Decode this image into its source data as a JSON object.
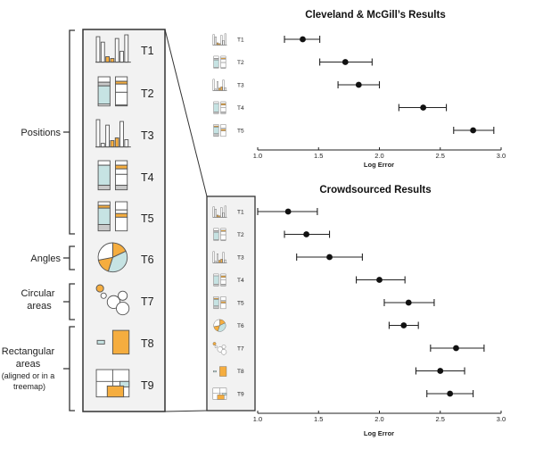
{
  "categories": [
    {
      "name": "Positions",
      "lines": [
        "Positions"
      ]
    },
    {
      "name": "Angles",
      "lines": [
        "Angles"
      ]
    },
    {
      "name": "Circular areas",
      "lines": [
        "Circular",
        "areas"
      ]
    },
    {
      "name": "Rectangular areas (aligned or in a treemap)",
      "lines": [
        "Rectangular",
        "areas",
        "(aligned or in a",
        "treemap)"
      ]
    }
  ],
  "tasks": [
    "T1",
    "T2",
    "T3",
    "T4",
    "T5",
    "T6",
    "T7",
    "T8",
    "T9"
  ],
  "colors": {
    "orange": "#f5ad3f",
    "lightblue": "#c6e3e3",
    "panel": "#f2f2f2",
    "gray": "#c9c9c9",
    "dark": "#333333"
  },
  "chart_data": [
    {
      "type": "scatter",
      "title": "Cleveland & McGill’s  Results",
      "xlabel": "Log Error",
      "ylabel": "",
      "xlim": [
        1.0,
        3.0
      ],
      "xticks": [
        "1.0",
        "1.5",
        "2.0",
        "2.5",
        "3.0"
      ],
      "categories": [
        "T1",
        "T2",
        "T3",
        "T4",
        "T5"
      ],
      "values": [
        1.37,
        1.72,
        1.83,
        2.36,
        2.77
      ],
      "ci_low": [
        1.22,
        1.51,
        1.66,
        2.16,
        2.61
      ],
      "ci_high": [
        1.51,
        1.94,
        2.0,
        2.55,
        2.94
      ],
      "grid": false
    },
    {
      "type": "scatter",
      "title": "Crowdsourced Results",
      "xlabel": "Log Error",
      "ylabel": "",
      "xlim": [
        1.0,
        3.0
      ],
      "xticks": [
        "1.0",
        "1.5",
        "2.0",
        "2.5",
        "3.0"
      ],
      "categories": [
        "T1",
        "T2",
        "T3",
        "T4",
        "T5",
        "T6",
        "T7",
        "T8",
        "T9"
      ],
      "values": [
        1.25,
        1.4,
        1.59,
        2.0,
        2.24,
        2.2,
        2.63,
        2.5,
        2.58
      ],
      "ci_low": [
        1.0,
        1.22,
        1.32,
        1.81,
        2.04,
        2.08,
        2.42,
        2.3,
        2.39
      ],
      "ci_high": [
        1.49,
        1.59,
        1.86,
        2.21,
        2.45,
        2.32,
        2.86,
        2.7,
        2.77
      ],
      "grid": false
    }
  ]
}
